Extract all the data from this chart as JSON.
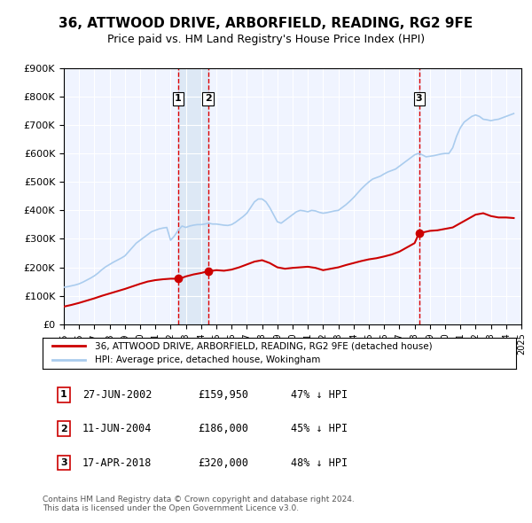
{
  "title": "36, ATTWOOD DRIVE, ARBORFIELD, READING, RG2 9FE",
  "subtitle": "Price paid vs. HM Land Registry's House Price Index (HPI)",
  "xlabel": "",
  "ylabel": "",
  "ylim": [
    0,
    900000
  ],
  "xlim_start": 1995,
  "xlim_end": 2025,
  "yticks": [
    0,
    100000,
    200000,
    300000,
    400000,
    500000,
    600000,
    700000,
    800000,
    900000
  ],
  "ytick_labels": [
    "£0",
    "£100K",
    "£200K",
    "£300K",
    "£400K",
    "£500K",
    "£600K",
    "£700K",
    "£800K",
    "£900K"
  ],
  "xticks": [
    1995,
    1996,
    1997,
    1998,
    1999,
    2000,
    2001,
    2002,
    2003,
    2004,
    2005,
    2006,
    2007,
    2008,
    2009,
    2010,
    2011,
    2012,
    2013,
    2014,
    2015,
    2016,
    2017,
    2018,
    2019,
    2020,
    2021,
    2022,
    2023,
    2024,
    2025
  ],
  "background_color": "#ffffff",
  "plot_bg_color": "#f0f4ff",
  "grid_color": "#ffffff",
  "red_line_color": "#cc0000",
  "blue_line_color": "#aaccee",
  "sale_marker_color": "#cc0000",
  "vline_color": "#dd0000",
  "vline_shade_color": "#dde8f5",
  "legend_label_red": "36, ATTWOOD DRIVE, ARBORFIELD, READING, RG2 9FE (detached house)",
  "legend_label_blue": "HPI: Average price, detached house, Wokingham",
  "transactions": [
    {
      "num": 1,
      "date": "27-JUN-2002",
      "year": 2002.49,
      "price": 159950,
      "pct": "47% ↓ HPI"
    },
    {
      "num": 2,
      "date": "11-JUN-2004",
      "year": 2004.45,
      "price": 186000,
      "pct": "45% ↓ HPI"
    },
    {
      "num": 3,
      "date": "17-APR-2018",
      "year": 2018.29,
      "price": 320000,
      "pct": "48% ↓ HPI"
    }
  ],
  "footer": "Contains HM Land Registry data © Crown copyright and database right 2024.\nThis data is licensed under the Open Government Licence v3.0.",
  "hpi_data": {
    "years": [
      1995.0,
      1995.25,
      1995.5,
      1995.75,
      1996.0,
      1996.25,
      1996.5,
      1996.75,
      1997.0,
      1997.25,
      1997.5,
      1997.75,
      1998.0,
      1998.25,
      1998.5,
      1998.75,
      1999.0,
      1999.25,
      1999.5,
      1999.75,
      2000.0,
      2000.25,
      2000.5,
      2000.75,
      2001.0,
      2001.25,
      2001.5,
      2001.75,
      2002.0,
      2002.25,
      2002.5,
      2002.75,
      2003.0,
      2003.25,
      2003.5,
      2003.75,
      2004.0,
      2004.25,
      2004.5,
      2004.75,
      2005.0,
      2005.25,
      2005.5,
      2005.75,
      2006.0,
      2006.25,
      2006.5,
      2006.75,
      2007.0,
      2007.25,
      2007.5,
      2007.75,
      2008.0,
      2008.25,
      2008.5,
      2008.75,
      2009.0,
      2009.25,
      2009.5,
      2009.75,
      2010.0,
      2010.25,
      2010.5,
      2010.75,
      2011.0,
      2011.25,
      2011.5,
      2011.75,
      2012.0,
      2012.25,
      2012.5,
      2012.75,
      2013.0,
      2013.25,
      2013.5,
      2013.75,
      2014.0,
      2014.25,
      2014.5,
      2014.75,
      2015.0,
      2015.25,
      2015.5,
      2015.75,
      2016.0,
      2016.25,
      2016.5,
      2016.75,
      2017.0,
      2017.25,
      2017.5,
      2017.75,
      2018.0,
      2018.25,
      2018.5,
      2018.75,
      2019.0,
      2019.25,
      2019.5,
      2019.75,
      2020.0,
      2020.25,
      2020.5,
      2020.75,
      2021.0,
      2021.25,
      2021.5,
      2021.75,
      2022.0,
      2022.25,
      2022.5,
      2022.75,
      2023.0,
      2023.25,
      2023.5,
      2023.75,
      2024.0,
      2024.25,
      2024.5
    ],
    "values": [
      130000,
      132000,
      135000,
      138000,
      142000,
      148000,
      155000,
      162000,
      170000,
      180000,
      192000,
      202000,
      210000,
      218000,
      225000,
      232000,
      240000,
      255000,
      270000,
      285000,
      295000,
      305000,
      315000,
      325000,
      330000,
      335000,
      338000,
      340000,
      295000,
      310000,
      330000,
      345000,
      340000,
      345000,
      348000,
      350000,
      350000,
      352000,
      355000,
      352000,
      352000,
      350000,
      348000,
      347000,
      350000,
      358000,
      368000,
      378000,
      390000,
      410000,
      430000,
      440000,
      440000,
      430000,
      410000,
      385000,
      360000,
      355000,
      365000,
      375000,
      385000,
      395000,
      400000,
      398000,
      395000,
      400000,
      398000,
      393000,
      390000,
      392000,
      395000,
      398000,
      400000,
      410000,
      420000,
      432000,
      445000,
      460000,
      475000,
      488000,
      500000,
      510000,
      515000,
      520000,
      528000,
      535000,
      540000,
      545000,
      555000,
      565000,
      575000,
      585000,
      595000,
      600000,
      595000,
      588000,
      590000,
      592000,
      595000,
      598000,
      600000,
      600000,
      620000,
      660000,
      690000,
      710000,
      720000,
      730000,
      735000,
      730000,
      720000,
      718000,
      715000,
      718000,
      720000,
      725000,
      730000,
      735000,
      740000
    ]
  },
  "red_line_data": {
    "years": [
      1995.0,
      1995.5,
      1996.0,
      1996.5,
      1997.0,
      1997.5,
      1998.0,
      1998.5,
      1999.0,
      1999.5,
      2000.0,
      2000.5,
      2001.0,
      2001.5,
      2002.0,
      2002.49,
      2002.49,
      2002.75,
      2003.0,
      2003.5,
      2004.0,
      2004.45,
      2004.45,
      2004.75,
      2005.0,
      2005.5,
      2006.0,
      2006.5,
      2007.0,
      2007.5,
      2008.0,
      2008.5,
      2009.0,
      2009.5,
      2010.0,
      2010.5,
      2011.0,
      2011.5,
      2012.0,
      2012.5,
      2013.0,
      2013.5,
      2014.0,
      2014.5,
      2015.0,
      2015.5,
      2016.0,
      2016.5,
      2017.0,
      2017.5,
      2018.0,
      2018.29,
      2018.29,
      2018.75,
      2019.0,
      2019.5,
      2020.0,
      2020.5,
      2021.0,
      2021.5,
      2022.0,
      2022.5,
      2023.0,
      2023.5,
      2024.0,
      2024.5
    ],
    "values": [
      62000,
      68000,
      75000,
      83000,
      91000,
      100000,
      108000,
      116000,
      124000,
      133000,
      142000,
      150000,
      155000,
      158000,
      160000,
      159950,
      159950,
      163000,
      168000,
      175000,
      180000,
      186000,
      186000,
      188000,
      190000,
      188000,
      192000,
      200000,
      210000,
      220000,
      225000,
      215000,
      200000,
      195000,
      198000,
      200000,
      202000,
      198000,
      190000,
      195000,
      200000,
      208000,
      215000,
      222000,
      228000,
      232000,
      238000,
      245000,
      255000,
      270000,
      285000,
      320000,
      320000,
      325000,
      328000,
      330000,
      335000,
      340000,
      355000,
      370000,
      385000,
      390000,
      380000,
      375000,
      375000,
      373000
    ]
  }
}
